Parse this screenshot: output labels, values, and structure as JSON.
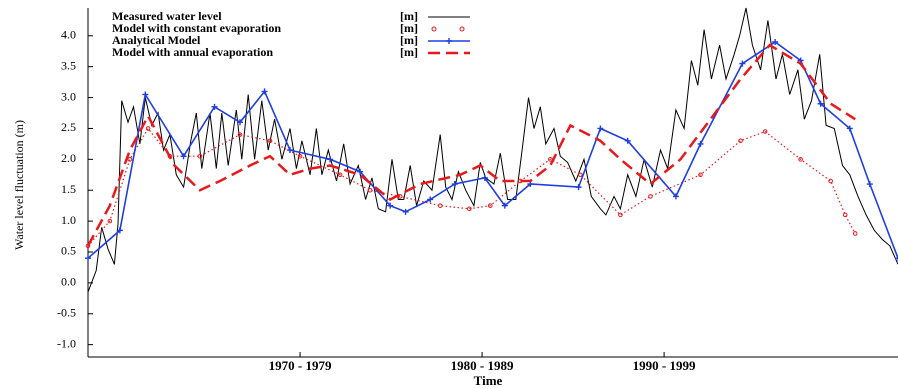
{
  "chart_data": {
    "type": "line",
    "x_label": "Time",
    "y_label": "Water level fluctuation (m)",
    "legend_unit": "[m]",
    "legend": "upper left",
    "xlim": [
      1963.35,
      2007.85
    ],
    "ylim": [
      -1.2,
      4.45
    ],
    "xticks": [
      {
        "value": 1975,
        "label": "1970 - 1979"
      },
      {
        "value": 1985,
        "label": "1980 - 1989"
      },
      {
        "value": 1995,
        "label": "1990 - 1999"
      }
    ],
    "yticks": [
      {
        "value": -1,
        "label": "-1.0"
      },
      -0.5,
      {
        "value": 0,
        "label": "0.0"
      },
      0.5,
      {
        "value": 1,
        "label": "1.0"
      },
      1.5,
      {
        "value": 2,
        "label": "2.0"
      },
      2.5,
      {
        "value": 3,
        "label": "3.0"
      },
      3.5,
      {
        "value": 4,
        "label": "4.0"
      }
    ],
    "series": [
      {
        "name": "Measured water level",
        "color": "#000000",
        "style": "solid",
        "x": [
          1963.35,
          1963.8,
          1964.1,
          1964.45,
          1964.8,
          1965.0,
          1965.2,
          1965.55,
          1965.85,
          1966.2,
          1966.5,
          1966.85,
          1967.2,
          1967.5,
          1967.85,
          1968.2,
          1968.6,
          1969.0,
          1969.3,
          1969.6,
          1970.05,
          1970.4,
          1970.7,
          1971.05,
          1971.5,
          1971.8,
          1972.15,
          1972.5,
          1972.9,
          1973.25,
          1973.6,
          1974.0,
          1974.45,
          1974.8,
          1975.1,
          1975.55,
          1975.9,
          1976.2,
          1976.55,
          1977.0,
          1977.4,
          1977.75,
          1978.2,
          1978.6,
          1978.95,
          1979.3,
          1979.7,
          1980.05,
          1980.4,
          1980.7,
          1981.05,
          1981.4,
          1981.8,
          1982.25,
          1982.7,
          1983.0,
          1983.35,
          1983.7,
          1984.1,
          1984.55,
          1984.9,
          1985.2,
          1985.65,
          1986.0,
          1986.4,
          1986.85,
          1987.2,
          1987.55,
          1987.85,
          1988.2,
          1988.5,
          1988.95,
          1989.3,
          1989.7,
          1990.15,
          1990.6,
          1991.0,
          1991.5,
          1991.8,
          1992.25,
          1992.6,
          1993.0,
          1993.45,
          1993.9,
          1994.35,
          1994.8,
          1995.2,
          1995.65,
          1996.1,
          1996.5,
          1996.85,
          1997.2,
          1997.6,
          1998.05,
          1998.4,
          1998.85,
          1999.15,
          1999.5,
          1999.85,
          2000.3,
          2000.7,
          2001.15,
          2001.5,
          2001.9,
          2002.35,
          2002.7,
          2003.1,
          2003.55,
          2003.9,
          2004.35,
          2004.8,
          2005.2,
          2005.65,
          2006.1,
          2006.55,
          2007.0,
          2007.4,
          2007.85
        ],
        "values": [
          -0.15,
          0.2,
          0.9,
          0.55,
          0.3,
          0.95,
          2.95,
          2.6,
          2.85,
          2.25,
          3.0,
          2.55,
          2.75,
          2.15,
          2.4,
          1.75,
          1.55,
          2.3,
          2.75,
          1.85,
          2.75,
          1.85,
          2.75,
          1.9,
          2.8,
          2.0,
          3.05,
          2.0,
          2.95,
          2.15,
          2.65,
          2.0,
          2.5,
          1.85,
          2.3,
          1.75,
          2.5,
          1.75,
          2.15,
          1.65,
          2.25,
          1.6,
          1.9,
          1.35,
          1.7,
          1.2,
          1.15,
          2.0,
          1.35,
          1.35,
          1.9,
          1.25,
          1.65,
          1.5,
          2.4,
          1.55,
          1.35,
          1.8,
          1.5,
          1.25,
          1.95,
          1.7,
          1.6,
          2.1,
          1.35,
          1.35,
          2.15,
          3.0,
          2.5,
          2.85,
          2.25,
          2.5,
          2.05,
          1.95,
          1.65,
          2.0,
          1.4,
          1.2,
          1.1,
          1.4,
          1.2,
          1.75,
          1.4,
          2.0,
          1.55,
          2.15,
          1.85,
          2.8,
          2.5,
          3.6,
          3.2,
          4.1,
          3.3,
          3.85,
          3.3,
          3.7,
          4.0,
          4.45,
          3.85,
          3.45,
          4.25,
          3.3,
          3.7,
          3.05,
          3.45,
          2.65,
          2.95,
          3.7,
          2.55,
          2.5,
          1.9,
          1.75,
          1.4,
          1.1,
          0.85,
          0.7,
          0.6,
          0.3
        ]
      },
      {
        "name": "Model with constant evaporation",
        "color": "#e8191c",
        "style": "circles",
        "x": [
          1963.35,
          1964.55,
          1965.65,
          1966.65,
          1967.85,
          1969.5,
          1971.7,
          1973.35,
          1975.0,
          1977.2,
          1978.85,
          1980.5,
          1982.7,
          1984.3,
          1985.45,
          1987.1,
          1988.75,
          1990.4,
          1992.6,
          1994.25,
          1997.0,
          1999.2,
          2000.55,
          2002.5,
          2004.15,
          2004.95,
          2005.5
        ],
        "values": [
          0.6,
          1.0,
          2.0,
          2.5,
          2.05,
          2.05,
          2.4,
          2.3,
          2.05,
          1.75,
          1.5,
          1.4,
          1.25,
          1.2,
          1.25,
          1.65,
          2.0,
          1.75,
          1.1,
          1.4,
          1.75,
          2.3,
          2.45,
          2.0,
          1.65,
          1.1,
          0.8
        ]
      },
      {
        "name": "Analytical Model",
        "color": "#1f3fe0",
        "style": "plus",
        "x": [
          1963.35,
          1965.1,
          1966.5,
          1968.6,
          1970.3,
          1971.7,
          1973.05,
          1974.45,
          1976.65,
          1978.3,
          1979.95,
          1980.8,
          1982.15,
          1983.5,
          1985.15,
          1986.25,
          1987.65,
          1990.3,
          1991.5,
          1993.0,
          1995.65,
          1997.0,
          1999.3,
          2001.1,
          2002.5,
          2003.6,
          2005.2,
          2006.3,
          2007.85
        ],
        "values": [
          0.4,
          0.85,
          3.05,
          2.05,
          2.85,
          2.6,
          3.1,
          2.15,
          2.0,
          1.8,
          1.25,
          1.15,
          1.35,
          1.6,
          1.7,
          1.25,
          1.6,
          1.55,
          2.5,
          2.3,
          1.4,
          2.25,
          3.55,
          3.9,
          3.6,
          2.9,
          2.5,
          1.6,
          0.4
        ]
      },
      {
        "name": "Model with annual evaporation",
        "color": "#e8191c",
        "style": "dashed",
        "x": [
          1963.35,
          1964.55,
          1965.65,
          1966.65,
          1968.1,
          1969.5,
          1970.6,
          1972.25,
          1973.35,
          1974.45,
          1975.55,
          1976.65,
          1978.3,
          1979.95,
          1981.6,
          1983.8,
          1984.9,
          1986.0,
          1987.65,
          1988.75,
          1989.85,
          1991.5,
          1992.6,
          1994.25,
          1995.9,
          1997.55,
          1999.2,
          2000.8,
          2002.5,
          2004.15,
          2005.5
        ],
        "values": [
          0.6,
          1.25,
          2.15,
          2.7,
          1.9,
          1.5,
          1.65,
          1.9,
          2.05,
          1.75,
          1.85,
          1.9,
          1.75,
          1.35,
          1.6,
          1.75,
          1.9,
          1.65,
          1.65,
          1.9,
          2.55,
          2.3,
          2.0,
          1.6,
          2.0,
          2.65,
          3.3,
          3.85,
          3.55,
          2.9,
          2.65
        ]
      }
    ]
  }
}
